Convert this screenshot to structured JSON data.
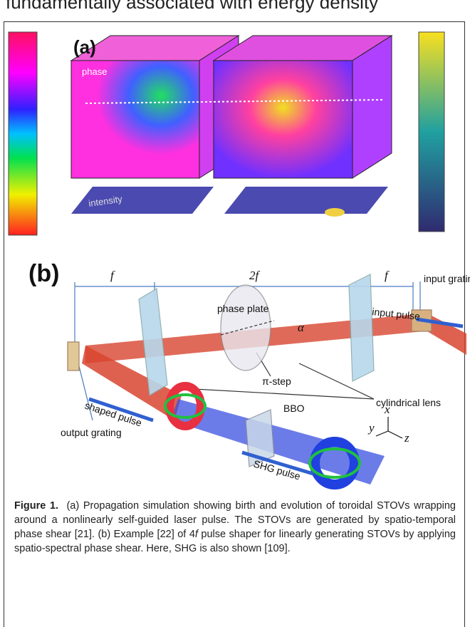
{
  "header_text": "fundamentally associated with energy density",
  "panel_a": {
    "label": "(a)",
    "phase": "phase",
    "intensity": "intensity"
  },
  "panel_b": {
    "label": "(b)",
    "f_left": "f",
    "two_f": "2f",
    "f_right": "f",
    "input_grating": "input grating",
    "input_pulse": "input pulse",
    "phase_plate": "phase plate",
    "alpha": "α",
    "pi_step": "π-step",
    "cylindrical_lens": "cylindrical lens",
    "bbo": "BBO",
    "shaped_pulse": "shaped pulse",
    "output_grating": "output grating",
    "shg_pulse": "SHG pulse",
    "axis_x": "x",
    "axis_y": "y",
    "axis_z": "z"
  },
  "caption": {
    "label": "Figure 1.",
    "text_1": "(a) Propagation simulation showing birth and evolution of toroidal STOVs wrapping around a nonlinearly self-guided laser pulse. The STOVs are generated by spatio-temporal phase shear [21]. (b) Example [22] of 4",
    "italic": "f",
    "text_2": " pulse shaper for linearly generating STOVs by applying spatio-spectral phase shear. Here, SHG is also shown [109]."
  }
}
